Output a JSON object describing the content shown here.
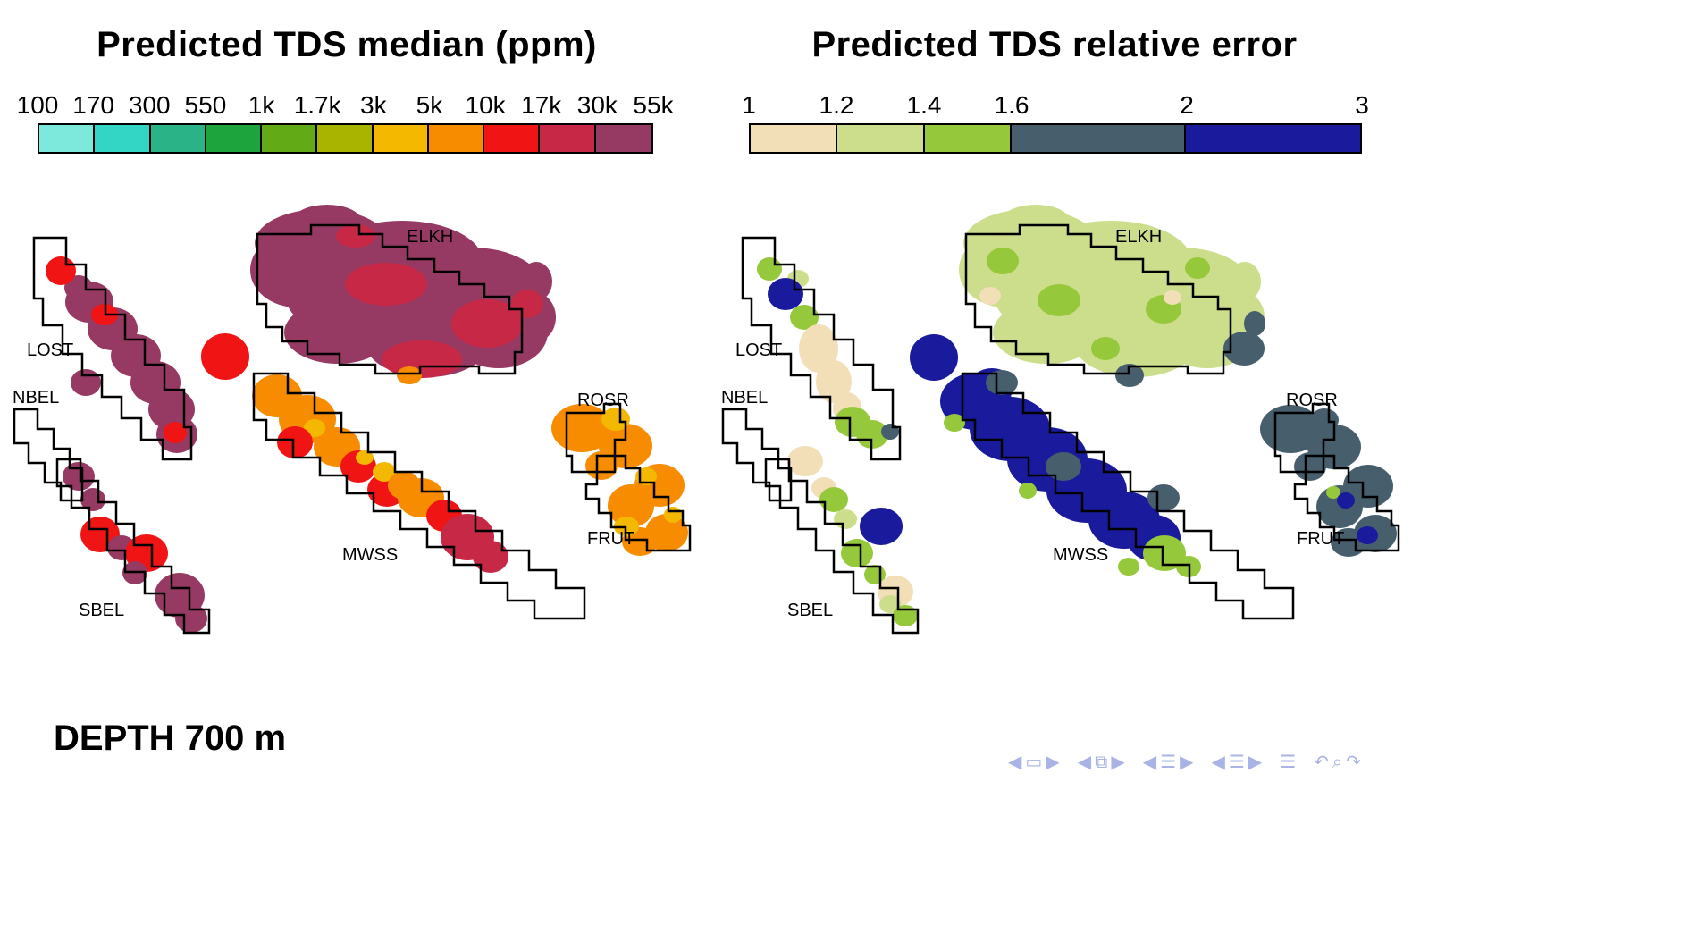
{
  "titles": {
    "left": "Predicted TDS median (ppm)",
    "right": "Predicted TDS relative error"
  },
  "depth_label": "DEPTH 700 m",
  "regions": [
    "LOST",
    "NBEL",
    "SBEL",
    "ELKH",
    "MWSS",
    "ROSR",
    "FRUT"
  ],
  "colorbars": {
    "tds": {
      "labels": [
        "100",
        "170",
        "300",
        "550",
        "1k",
        "1.7k",
        "3k",
        "5k",
        "10k",
        "17k",
        "30k",
        "55k"
      ],
      "colors": [
        "#7de8dc",
        "#33d6c4",
        "#2ab386",
        "#1ea43c",
        "#62aa16",
        "#a8b400",
        "#f5b800",
        "#f78c00",
        "#f01414",
        "#c62846",
        "#973a63"
      ],
      "stops": [
        0,
        1,
        2,
        3,
        4,
        5,
        6,
        7,
        8,
        9,
        10,
        11
      ]
    },
    "err": {
      "labels": [
        "1",
        "1.2",
        "1.4",
        "1.6",
        "2",
        "3"
      ],
      "colors": [
        "#f2dfb8",
        "#ccde8c",
        "#96c83c",
        "#475f6d",
        "#1a1a9c"
      ],
      "stops": [
        0,
        1,
        2,
        3,
        5,
        7
      ]
    }
  },
  "nav": {
    "groups": [
      {
        "name": "slide-nav",
        "icons": [
          {
            "name": "slide-back-icon",
            "glyph": "◀"
          },
          {
            "name": "slide-icon",
            "glyph": "▭"
          },
          {
            "name": "slide-forward-icon",
            "glyph": "▶"
          }
        ]
      },
      {
        "name": "frame-nav",
        "icons": [
          {
            "name": "frame-back-icon",
            "glyph": "◀"
          },
          {
            "name": "frame-icon",
            "glyph": "⧉"
          },
          {
            "name": "frame-forward-icon",
            "glyph": "▶"
          }
        ]
      },
      {
        "name": "subsection-nav",
        "icons": [
          {
            "name": "subsection-back-icon",
            "glyph": "◀"
          },
          {
            "name": "subsection-icon",
            "glyph": "☰"
          },
          {
            "name": "subsection-forward-icon",
            "glyph": "▶"
          }
        ]
      },
      {
        "name": "section-nav",
        "icons": [
          {
            "name": "section-back-icon",
            "glyph": "◀"
          },
          {
            "name": "section-icon",
            "glyph": "☰"
          },
          {
            "name": "section-forward-icon",
            "glyph": "▶"
          }
        ]
      },
      {
        "name": "appendix-nav",
        "icons": [
          {
            "name": "appendix-icon",
            "glyph": "☰"
          }
        ]
      },
      {
        "name": "history-nav",
        "icons": [
          {
            "name": "back-icon",
            "glyph": "↶"
          },
          {
            "name": "search-icon",
            "glyph": "⌕"
          },
          {
            "name": "forward-icon",
            "glyph": "↷"
          }
        ]
      }
    ]
  },
  "chart_data": [
    {
      "type": "heatmap",
      "title": "Predicted TDS median (ppm)",
      "units": "ppm",
      "scale_type": "discrete log-spaced bins",
      "bin_edges": [
        "100",
        "170",
        "300",
        "550",
        "1k",
        "1.7k",
        "3k",
        "5k",
        "10k",
        "17k",
        "30k",
        "55k"
      ],
      "bin_colors": [
        "#7de8dc",
        "#33d6c4",
        "#2ab386",
        "#1ea43c",
        "#62aa16",
        "#a8b400",
        "#f5b800",
        "#f78c00",
        "#f01414",
        "#c62846",
        "#973a63"
      ],
      "legend_position": "top",
      "regions": [
        {
          "name": "LOST",
          "predicted_value": "17k–55k ppm (maroon band with red patches)"
        },
        {
          "name": "NBEL",
          "predicted_value": "no prediction shown"
        },
        {
          "name": "SBEL",
          "predicted_value": "10k–55k ppm (alternating red and maroon patches)"
        },
        {
          "name": "ELKH",
          "predicted_value": "17k–55k ppm (maroon with crimson patches, small orange spot at south edge)"
        },
        {
          "name": "MWSS",
          "predicted_value": "3k–30k ppm (orange/amber upper band, red middle, crimson at southeast)"
        },
        {
          "name": "ROSR",
          "predicted_value": "3k–10k ppm (orange with amber patches)"
        },
        {
          "name": "FRUT",
          "predicted_value": "3k–10k ppm (orange with amber patches)"
        }
      ]
    },
    {
      "type": "heatmap",
      "title": "Predicted TDS relative error",
      "units": "relative error factor",
      "scale_type": "discrete bins",
      "bin_edges": [
        "1",
        "1.2",
        "1.4",
        "1.6",
        "2",
        "3"
      ],
      "bin_colors": [
        "#f2dfb8",
        "#ccde8c",
        "#96c83c",
        "#475f6d",
        "#1a1a9c"
      ],
      "legend_position": "top",
      "regions": [
        {
          "name": "LOST",
          "predicted_value": "1–1.6 (cream core, green edges) with a 2–3 navy spot at north"
        },
        {
          "name": "NBEL",
          "predicted_value": "no prediction shown"
        },
        {
          "name": "SBEL",
          "predicted_value": "1–1.6 (cream/green) with one 2–3 navy spot"
        },
        {
          "name": "ELKH",
          "predicted_value": "mostly 1.2–1.4 (light green), patches 1.4–1.6 and 1.6–2, small 1–1.2 spots"
        },
        {
          "name": "MWSS",
          "predicted_value": "mostly 2–3 (navy) with 1.6–2 slate patches and 1.4–1.6 green at southeast"
        },
        {
          "name": "ROSR",
          "predicted_value": "1.6–2 (slate) with small 2–3 navy spots"
        },
        {
          "name": "FRUT",
          "predicted_value": "1.6–2 (slate) with small 2–3 navy and 1.4–1.6 green spots"
        }
      ]
    }
  ]
}
